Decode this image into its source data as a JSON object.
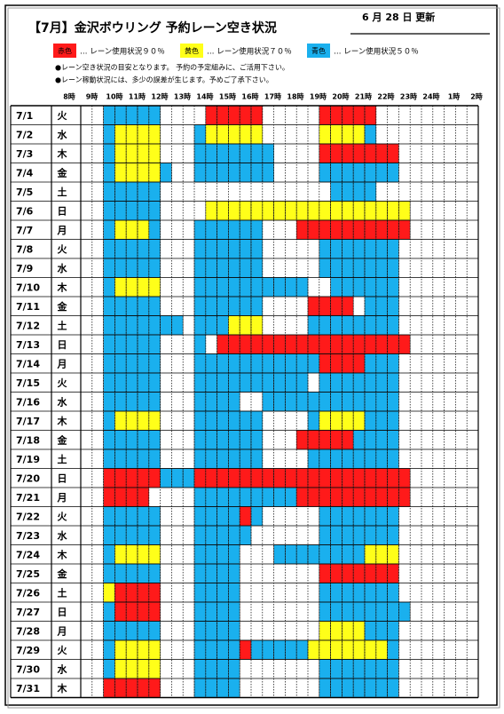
{
  "header": {
    "title": "【7月】金沢ボウリング 予約レーン空き状況",
    "updated": "6 月 28 日 更新"
  },
  "legend": [
    {
      "code": "r",
      "label": "赤色",
      "text": "… レーン使用状況９０％",
      "color": "#ff1a1a"
    },
    {
      "code": "y",
      "label": "黄色",
      "text": "… レーン使用状況７０％",
      "color": "#ffff19"
    },
    {
      "code": "b",
      "label": "青色",
      "text": "… レーン使用状況５０％",
      "color": "#1ab0ee"
    }
  ],
  "notes": [
    "●レーン空き状況の目安となります。 予約の予定組みに、ご活用下さい。",
    "●レーン稼動状況には、多少の誤差が生じます。予めご了承下さい。"
  ],
  "hours": [
    "8時",
    "9時",
    "10時",
    "11時",
    "12時",
    "13時",
    "14時",
    "15時",
    "16時",
    "17時",
    "18時",
    "19時",
    "20時",
    "21時",
    "22時",
    "23時",
    "24時",
    "1時",
    "2時"
  ],
  "rows": [
    {
      "date": "7/1",
      "day": "火",
      "cells": "..bbbbb....rrrrr.....rrrrr........."
    },
    {
      "date": "7/2",
      "day": "水",
      "cells": "..byyyy...byyyyy.....yyyyb........."
    },
    {
      "date": "7/3",
      "day": "木",
      "cells": "..byyyy...bbbbbbb....rrrrrrr......."
    },
    {
      "date": "7/4",
      "day": "金",
      "cells": "..byyyyb..bbbbbbb....bbbbbbb......."
    },
    {
      "date": "7/5",
      "day": "土",
      "day_color": "#0000cc",
      "cells": "..bbbbb...............bbbb........."
    },
    {
      "date": "7/6",
      "day": "日",
      "day_color": "#e00000",
      "cells": "..bbbbb....yyyyyyyyyyyyyyyyyy......"
    },
    {
      "date": "7/7",
      "day": "月",
      "cells": "..byyyb...bbbbbb...rrrrrrrrrr......"
    },
    {
      "date": "7/8",
      "day": "火",
      "cells": "..bbbbb...bbbbbb.....bbbbbbb......."
    },
    {
      "date": "7/9",
      "day": "水",
      "cells": "..bbbbb...bbbbbb.....bbbbbbb......."
    },
    {
      "date": "7/10",
      "day": "木",
      "cells": "..byyyy...bbbbbbbbbb..bbbbbb......."
    },
    {
      "date": "7/11",
      "day": "金",
      "cells": "..bbbbb...bbbbbb....rrrr.bbb......."
    },
    {
      "date": "7/12",
      "day": "土",
      "day_color": "#0000cc",
      "cells": "..bbbbbbb.bbbyyy....bbbbbbbb......."
    },
    {
      "date": "7/13",
      "day": "日",
      "day_color": "#e00000",
      "cells": "..bbbbb...b.rrrrrrrrrrrrrrrrr......"
    },
    {
      "date": "7/14",
      "day": "月",
      "cells": "..bbbbb...bbbbbbbbbbbrrrrbbb......."
    },
    {
      "date": "7/15",
      "day": "火",
      "cells": "..bbbbb...bbbbbbbbbb.bbbbbbb......."
    },
    {
      "date": "7/16",
      "day": "水",
      "cells": "..bbbbb...bbbb..bbbbbbbbbbbb......."
    },
    {
      "date": "7/17",
      "day": "木",
      "cells": "..byyyy...bbbbbb....byyyybbb......."
    },
    {
      "date": "7/18",
      "day": "金",
      "cells": "..bbbbb...bbbbbb...rrrrrbbbb......."
    },
    {
      "date": "7/19",
      "day": "土",
      "day_color": "#0000cc",
      "cells": "..bbbbb...bbbbbb....bbbbbbbb......."
    },
    {
      "date": "7/20",
      "day": "日",
      "day_color": "#e00000",
      "cells": "..rrrrrbbbrrrrrrrrrrrrrrrrrrr......"
    },
    {
      "date": "7/21",
      "day": "月",
      "day_color": "#e00000",
      "cells": "..rrrr....bbbbbbbbbrrrrrrrrrr......"
    },
    {
      "date": "7/22",
      "day": "火",
      "cells": "..bbbbb...bbbbrb.....bbbbbbb......."
    },
    {
      "date": "7/23",
      "day": "水",
      "cells": "..bbbbb...bbbbb......bbbbbbb......."
    },
    {
      "date": "7/24",
      "day": "木",
      "cells": "..byyyy...bbbb...bbbbbbbbyyy......."
    },
    {
      "date": "7/25",
      "day": "金",
      "cells": "..bbbbb...bbbb.......rrrrrrr......."
    },
    {
      "date": "7/26",
      "day": "土",
      "day_color": "#0000cc",
      "cells": "..yrrrr...bbbb.......bbbbbbb......."
    },
    {
      "date": "7/27",
      "day": "日",
      "day_color": "#e00000",
      "cells": "..brrrr...bbbb.......bbbbbbbb......"
    },
    {
      "date": "7/28",
      "day": "月",
      "cells": "..bbbbb...bbbb.......yyyybbb......."
    },
    {
      "date": "7/29",
      "day": "火",
      "cells": "..byyyy...bbbbrbbbbbyyyyyyyb......."
    },
    {
      "date": "7/30",
      "day": "水",
      "cells": "..byyyy...bbbb.......bbbbbbb......."
    },
    {
      "date": "7/31",
      "day": "木",
      "cells": "..rrrrr...bbbb.......bbbbbbb......."
    }
  ]
}
